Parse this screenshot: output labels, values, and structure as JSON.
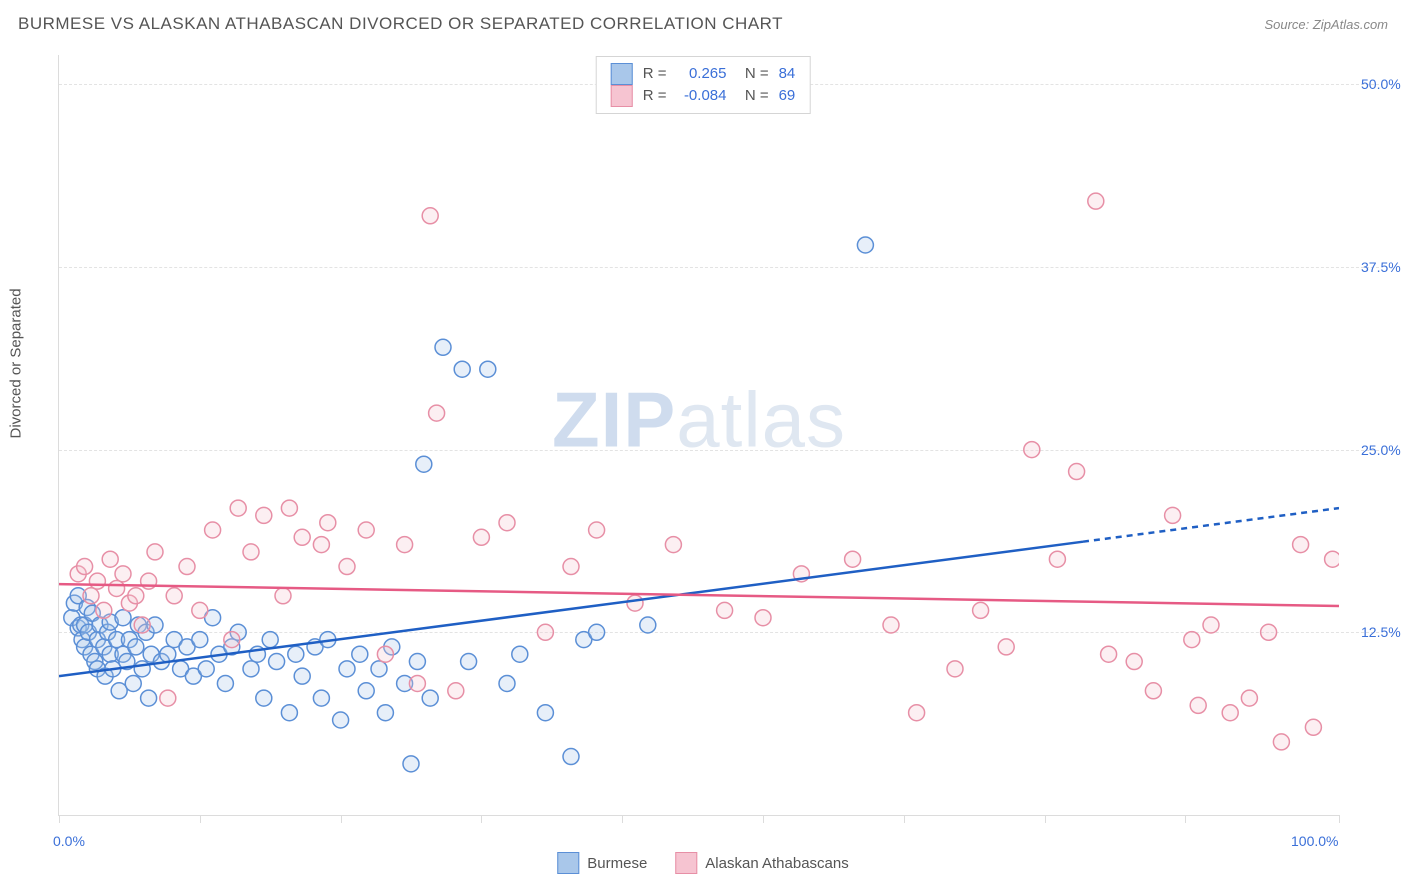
{
  "title": "BURMESE VS ALASKAN ATHABASCAN DIVORCED OR SEPARATED CORRELATION CHART",
  "source": "Source: ZipAtlas.com",
  "y_axis_label": "Divorced or Separated",
  "watermark_zip": "ZIP",
  "watermark_atlas": "atlas",
  "chart": {
    "type": "scatter",
    "xlim": [
      0,
      100
    ],
    "ylim": [
      0,
      52
    ],
    "x_ticks": [
      0,
      11,
      22,
      33,
      44,
      55,
      66,
      77,
      88,
      100
    ],
    "x_tick_labels_shown": {
      "0": "0.0%",
      "100": "100.0%"
    },
    "y_gridlines": [
      12.5,
      25.0,
      37.5,
      50.0
    ],
    "y_tick_labels": [
      "12.5%",
      "25.0%",
      "37.5%",
      "50.0%"
    ],
    "background_color": "#ffffff",
    "grid_color": "#e3e3e3",
    "axis_color": "#dcdcdc",
    "label_color": "#3a6fd8",
    "title_color": "#555555",
    "marker_radius": 8,
    "marker_stroke_width": 1.5,
    "marker_fill_opacity": 0.28,
    "series": [
      {
        "name": "Burmese",
        "color_stroke": "#5b8fd6",
        "color_fill": "#a9c7ea",
        "R": "0.265",
        "N": "84",
        "trend": {
          "x1": 0,
          "y1": 9.5,
          "x2": 80,
          "y2": 18.7,
          "x2_dash": 100,
          "y2_dash": 21.0,
          "color": "#1f5fc4",
          "width": 2.5
        },
        "points": [
          [
            1.0,
            13.5
          ],
          [
            1.2,
            14.5
          ],
          [
            1.5,
            12.8
          ],
          [
            1.5,
            15.0
          ],
          [
            1.7,
            13.0
          ],
          [
            1.8,
            12.0
          ],
          [
            2.0,
            11.5
          ],
          [
            2.0,
            13.0
          ],
          [
            2.2,
            14.2
          ],
          [
            2.3,
            12.5
          ],
          [
            2.5,
            11.0
          ],
          [
            2.6,
            13.8
          ],
          [
            2.8,
            10.5
          ],
          [
            3.0,
            12.0
          ],
          [
            3.0,
            10.0
          ],
          [
            3.2,
            13.0
          ],
          [
            3.5,
            11.5
          ],
          [
            3.6,
            9.5
          ],
          [
            3.8,
            12.5
          ],
          [
            4.0,
            11.0
          ],
          [
            4.0,
            13.2
          ],
          [
            4.2,
            10.0
          ],
          [
            4.5,
            12.0
          ],
          [
            4.7,
            8.5
          ],
          [
            5.0,
            11.0
          ],
          [
            5.0,
            13.5
          ],
          [
            5.3,
            10.5
          ],
          [
            5.5,
            12.0
          ],
          [
            5.8,
            9.0
          ],
          [
            6.0,
            11.5
          ],
          [
            6.2,
            13.0
          ],
          [
            6.5,
            10.0
          ],
          [
            6.8,
            12.5
          ],
          [
            7.0,
            8.0
          ],
          [
            7.2,
            11.0
          ],
          [
            7.5,
            13.0
          ],
          [
            8.0,
            10.5
          ],
          [
            8.5,
            11.0
          ],
          [
            9.0,
            12.0
          ],
          [
            9.5,
            10.0
          ],
          [
            10.0,
            11.5
          ],
          [
            10.5,
            9.5
          ],
          [
            11.0,
            12.0
          ],
          [
            11.5,
            10.0
          ],
          [
            12.0,
            13.5
          ],
          [
            12.5,
            11.0
          ],
          [
            13.0,
            9.0
          ],
          [
            13.5,
            11.5
          ],
          [
            14.0,
            12.5
          ],
          [
            15.0,
            10.0
          ],
          [
            15.5,
            11.0
          ],
          [
            16.0,
            8.0
          ],
          [
            16.5,
            12.0
          ],
          [
            17.0,
            10.5
          ],
          [
            18.0,
            7.0
          ],
          [
            18.5,
            11.0
          ],
          [
            19.0,
            9.5
          ],
          [
            20.0,
            11.5
          ],
          [
            20.5,
            8.0
          ],
          [
            21.0,
            12.0
          ],
          [
            22.0,
            6.5
          ],
          [
            22.5,
            10.0
          ],
          [
            23.5,
            11.0
          ],
          [
            24.0,
            8.5
          ],
          [
            25.0,
            10.0
          ],
          [
            25.5,
            7.0
          ],
          [
            26.0,
            11.5
          ],
          [
            27.0,
            9.0
          ],
          [
            27.5,
            3.5
          ],
          [
            28.0,
            10.5
          ],
          [
            28.5,
            24.0
          ],
          [
            29.0,
            8.0
          ],
          [
            30.0,
            32.0
          ],
          [
            31.5,
            30.5
          ],
          [
            32.0,
            10.5
          ],
          [
            33.5,
            30.5
          ],
          [
            35.0,
            9.0
          ],
          [
            36.0,
            11.0
          ],
          [
            38.0,
            7.0
          ],
          [
            40.0,
            4.0
          ],
          [
            41.0,
            12.0
          ],
          [
            42.0,
            12.5
          ],
          [
            46.0,
            13.0
          ],
          [
            63.0,
            39.0
          ]
        ]
      },
      {
        "name": "Alaskan Athabascans",
        "color_stroke": "#e78fa6",
        "color_fill": "#f6c4d1",
        "R": "-0.084",
        "N": "69",
        "trend": {
          "x1": 0,
          "y1": 15.8,
          "x2": 100,
          "y2": 14.3,
          "color": "#e65a84",
          "width": 2.5
        },
        "points": [
          [
            1.5,
            16.5
          ],
          [
            2.0,
            17.0
          ],
          [
            2.5,
            15.0
          ],
          [
            3.0,
            16.0
          ],
          [
            3.5,
            14.0
          ],
          [
            4.0,
            17.5
          ],
          [
            4.5,
            15.5
          ],
          [
            5.0,
            16.5
          ],
          [
            5.5,
            14.5
          ],
          [
            6.0,
            15.0
          ],
          [
            6.5,
            13.0
          ],
          [
            7.0,
            16.0
          ],
          [
            7.5,
            18.0
          ],
          [
            8.5,
            8.0
          ],
          [
            9.0,
            15.0
          ],
          [
            10.0,
            17.0
          ],
          [
            11.0,
            14.0
          ],
          [
            12.0,
            19.5
          ],
          [
            13.5,
            12.0
          ],
          [
            14.0,
            21.0
          ],
          [
            15.0,
            18.0
          ],
          [
            16.0,
            20.5
          ],
          [
            17.5,
            15.0
          ],
          [
            18.0,
            21.0
          ],
          [
            19.0,
            19.0
          ],
          [
            20.5,
            18.5
          ],
          [
            21.0,
            20.0
          ],
          [
            22.5,
            17.0
          ],
          [
            24.0,
            19.5
          ],
          [
            25.5,
            11.0
          ],
          [
            27.0,
            18.5
          ],
          [
            28.0,
            9.0
          ],
          [
            29.0,
            41.0
          ],
          [
            29.5,
            27.5
          ],
          [
            31.0,
            8.5
          ],
          [
            33.0,
            19.0
          ],
          [
            35.0,
            20.0
          ],
          [
            38.0,
            12.5
          ],
          [
            40.0,
            17.0
          ],
          [
            42.0,
            19.5
          ],
          [
            45.0,
            14.5
          ],
          [
            48.0,
            18.5
          ],
          [
            52.0,
            14.0
          ],
          [
            55.0,
            13.5
          ],
          [
            58.0,
            16.5
          ],
          [
            62.0,
            17.5
          ],
          [
            65.0,
            13.0
          ],
          [
            67.0,
            7.0
          ],
          [
            70.0,
            10.0
          ],
          [
            72.0,
            14.0
          ],
          [
            74.0,
            11.5
          ],
          [
            76.0,
            25.0
          ],
          [
            78.0,
            17.5
          ],
          [
            79.5,
            23.5
          ],
          [
            81.0,
            42.0
          ],
          [
            82.0,
            11.0
          ],
          [
            84.0,
            10.5
          ],
          [
            85.5,
            8.5
          ],
          [
            87.0,
            20.5
          ],
          [
            88.5,
            12.0
          ],
          [
            89.0,
            7.5
          ],
          [
            90.0,
            13.0
          ],
          [
            91.5,
            7.0
          ],
          [
            93.0,
            8.0
          ],
          [
            94.5,
            12.5
          ],
          [
            95.5,
            5.0
          ],
          [
            97.0,
            18.5
          ],
          [
            98.0,
            6.0
          ],
          [
            99.5,
            17.5
          ]
        ]
      }
    ]
  },
  "legend_bottom": [
    {
      "label": "Burmese",
      "sw_fill": "#a9c7ea",
      "sw_stroke": "#5b8fd6"
    },
    {
      "label": "Alaskan Athabascans",
      "sw_fill": "#f6c4d1",
      "sw_stroke": "#e78fa6"
    }
  ]
}
